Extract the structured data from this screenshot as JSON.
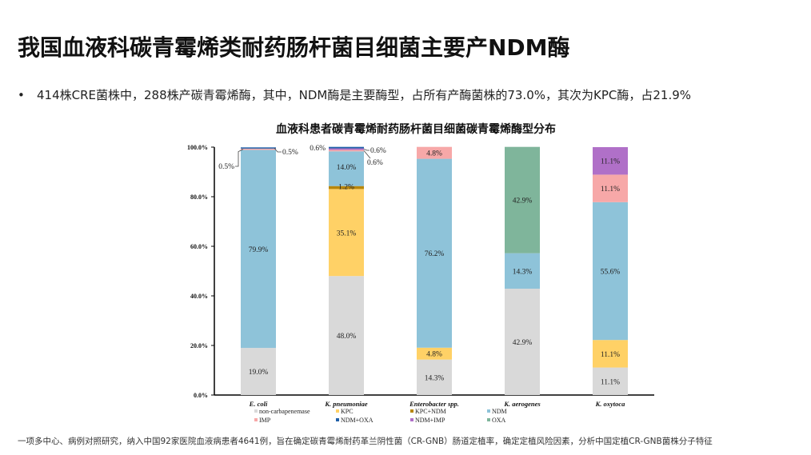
{
  "slide": {
    "title": "我国血液科碳青霉烯类耐药肠杆菌目细菌主要产NDM酶",
    "bullet": "414株CRE菌株中，288株产碳青霉烯酶，其中，NDM酶是主要酶型，占所有产酶菌株的73.0%，其次为KPC酶，占21.9%",
    "bullet_marker": "•",
    "footnote": "一项多中心、病例对照研究，纳入中国92家医院血液病患者4641例，旨在确定碳青霉烯耐药革兰阴性菌（CR-GNB）肠道定植率，确定定植风险因素，分析中国定植CR-GNB菌株分子特征"
  },
  "chart_data": {
    "type": "bar",
    "stacked": true,
    "title": "血液科患者碳青霉烯耐药肠杆菌目细菌碳青霉烯酶型分布",
    "xlabel": "",
    "ylabel": "",
    "ylim": [
      0,
      100
    ],
    "yticks": [
      "0.0%",
      "20.0%",
      "40.0%",
      "60.0%",
      "80.0%",
      "100.0%"
    ],
    "ytick_values": [
      0,
      20,
      40,
      60,
      80,
      100
    ],
    "grid": false,
    "legend_position": "bottom",
    "categories": [
      "E. coli",
      "K. pneumoniae",
      "Enterobacter spp.",
      "K. aerogenes",
      "K. oxytoca"
    ],
    "series": [
      {
        "name": "non-carbapenemase",
        "color": "#d9d9d9",
        "values": [
          19.0,
          48.0,
          14.3,
          42.9,
          11.1
        ]
      },
      {
        "name": "KPC",
        "color": "#ffd166",
        "values": [
          0,
          35.1,
          4.8,
          0,
          11.1
        ]
      },
      {
        "name": "KPC+NDM",
        "color": "#b8860b",
        "values": [
          0,
          1.2,
          0,
          0,
          0
        ]
      },
      {
        "name": "NDM",
        "color": "#8ec3d9",
        "values": [
          79.9,
          14.0,
          76.2,
          14.3,
          55.6
        ]
      },
      {
        "name": "IMP",
        "color": "#f7a8a8",
        "values": [
          0.5,
          0.6,
          4.8,
          0,
          11.1
        ]
      },
      {
        "name": "NDM+IMP",
        "color": "#b070c8",
        "values": [
          0,
          0.6,
          0,
          0,
          11.1
        ]
      },
      {
        "name": "NDM+OXA",
        "color": "#1f5fa8",
        "values": [
          0.5,
          0.6,
          0,
          0,
          0
        ]
      },
      {
        "name": "OXA",
        "color": "#7fb59b",
        "values": [
          0,
          0,
          0,
          42.9,
          0
        ]
      }
    ],
    "data_labels": [
      {
        "category": "E. coli",
        "series": "non-carbapenemase",
        "text": "19.0%"
      },
      {
        "category": "E. coli",
        "series": "NDM",
        "text": "79.9%"
      },
      {
        "category": "E. coli",
        "series": "IMP",
        "text": "0.5%",
        "callout": "left"
      },
      {
        "category": "E. coli",
        "series": "NDM+OXA",
        "text": "0.5%",
        "callout": "right"
      },
      {
        "category": "K. pneumoniae",
        "series": "non-carbapenemase",
        "text": "48.0%"
      },
      {
        "category": "K. pneumoniae",
        "series": "KPC",
        "text": "35.1%"
      },
      {
        "category": "K. pneumoniae",
        "series": "KPC+NDM",
        "text": "1.2%"
      },
      {
        "category": "K. pneumoniae",
        "series": "NDM",
        "text": "14.0%"
      },
      {
        "category": "K. pneumoniae",
        "series": "IMP",
        "text": "0.6%",
        "callout": "right-low"
      },
      {
        "category": "K. pneumoniae",
        "series": "NDM+IMP",
        "text": "0.6%",
        "callout": "right"
      },
      {
        "category": "K. pneumoniae",
        "series": "NDM+OXA",
        "text": "0.6%",
        "callout": "left"
      },
      {
        "category": "Enterobacter spp.",
        "series": "non-carbapenemase",
        "text": "14.3%"
      },
      {
        "category": "Enterobacter spp.",
        "series": "KPC",
        "text": "4.8%"
      },
      {
        "category": "Enterobacter spp.",
        "series": "NDM",
        "text": "76.2%"
      },
      {
        "category": "Enterobacter spp.",
        "series": "IMP",
        "text": "4.8%"
      },
      {
        "category": "K. aerogenes",
        "series": "non-carbapenemase",
        "text": "42.9%"
      },
      {
        "category": "K. aerogenes",
        "series": "NDM",
        "text": "14.3%"
      },
      {
        "category": "K. aerogenes",
        "series": "OXA",
        "text": "42.9%"
      },
      {
        "category": "K. oxytoca",
        "series": "non-carbapenemase",
        "text": "11.1%"
      },
      {
        "category": "K. oxytoca",
        "series": "KPC",
        "text": "11.1%"
      },
      {
        "category": "K. oxytoca",
        "series": "NDM",
        "text": "55.6%"
      },
      {
        "category": "K. oxytoca",
        "series": "IMP",
        "text": "11.1%"
      },
      {
        "category": "K. oxytoca",
        "series": "NDM+IMP",
        "text": "11.1%"
      }
    ],
    "legend_order": [
      "non-carbapenemase",
      "KPC",
      "KPC+NDM",
      "NDM",
      "IMP",
      "NDM+OXA",
      "NDM+IMP",
      "OXA"
    ]
  }
}
